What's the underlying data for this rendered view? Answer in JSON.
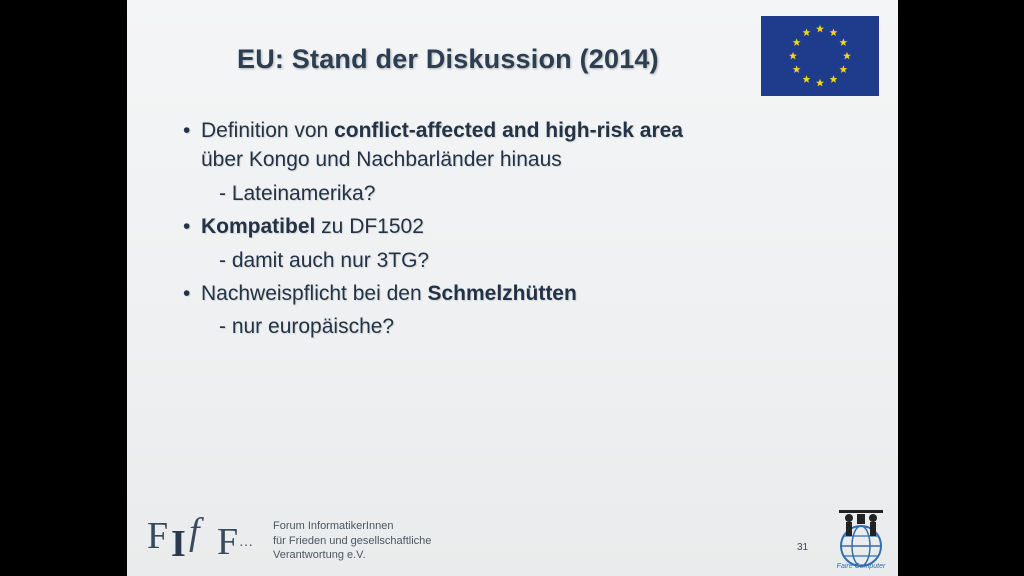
{
  "slide": {
    "title": "EU: Stand der Diskussion (2014)",
    "bullets": [
      {
        "parts": [
          {
            "text": "Definition von ",
            "bold": false
          },
          {
            "text": "conflict-affected and high-risk area",
            "bold": true
          }
        ],
        "continuation": "über Kongo und Nachbarländer hinaus",
        "sub": "- Lateinamerika?"
      },
      {
        "parts": [
          {
            "text": "Kompatibel",
            "bold": true
          },
          {
            "text": " zu DF1502",
            "bold": false
          }
        ],
        "sub": "- damit auch nur 3TG?"
      },
      {
        "parts": [
          {
            "text": "Nachweispflicht bei den ",
            "bold": false
          },
          {
            "text": "Schmelzhütten",
            "bold": true
          }
        ],
        "sub": "- nur europäische?"
      }
    ],
    "bullet_glyph": "•",
    "footer": {
      "org_lines": [
        "Forum InformatikerInnen",
        "für Frieden und gesellschaftliche",
        "Verantwortung e.V."
      ],
      "logo_letters": "FIfF",
      "page_number": "31",
      "right_logo_text": "Faire Computer"
    },
    "flag_icon": "eu-flag-icon",
    "colors": {
      "flag_blue": "#1f3c8c",
      "star_yellow": "#f5d21c",
      "title_text": "#2c3e52"
    }
  }
}
